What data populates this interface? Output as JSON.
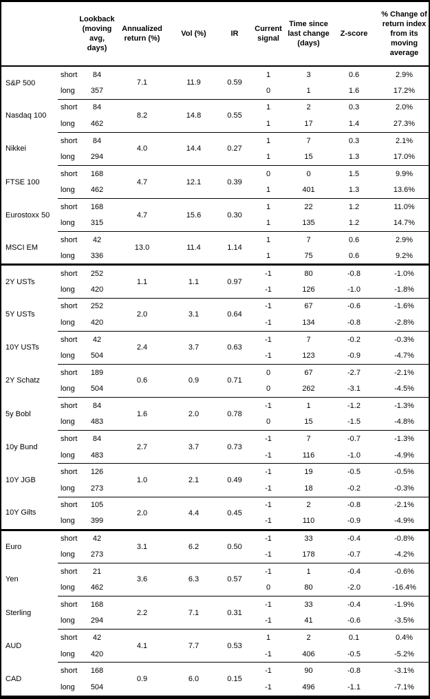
{
  "table": {
    "header_labels": [
      "",
      "",
      "Lookback (moving avg, days)",
      "Annualized return (%)",
      "Vol (%)",
      "IR",
      "Current signal",
      "Time since last change (days)",
      "Z-score",
      "% Change of return index from its moving average"
    ],
    "sections": [
      {
        "assets": [
          {
            "name": "S&P 500",
            "annualized_return": "7.1",
            "vol": "11.9",
            "ir": "0.59",
            "legs": [
              {
                "label": "short",
                "lookback": "84",
                "signal": "1",
                "time_since": "3",
                "z_score": "0.6",
                "pct_change": "2.9%"
              },
              {
                "label": "long",
                "lookback": "357",
                "signal": "0",
                "time_since": "1",
                "z_score": "1.6",
                "pct_change": "17.2%"
              }
            ]
          },
          {
            "name": "Nasdaq 100",
            "annualized_return": "8.2",
            "vol": "14.8",
            "ir": "0.55",
            "legs": [
              {
                "label": "short",
                "lookback": "84",
                "signal": "1",
                "time_since": "2",
                "z_score": "0.3",
                "pct_change": "2.0%"
              },
              {
                "label": "long",
                "lookback": "462",
                "signal": "1",
                "time_since": "17",
                "z_score": "1.4",
                "pct_change": "27.3%"
              }
            ]
          },
          {
            "name": "Nikkei",
            "annualized_return": "4.0",
            "vol": "14.4",
            "ir": "0.27",
            "legs": [
              {
                "label": "short",
                "lookback": "84",
                "signal": "1",
                "time_since": "7",
                "z_score": "0.3",
                "pct_change": "2.1%"
              },
              {
                "label": "long",
                "lookback": "294",
                "signal": "1",
                "time_since": "15",
                "z_score": "1.3",
                "pct_change": "17.0%"
              }
            ]
          },
          {
            "name": "FTSE 100",
            "annualized_return": "4.7",
            "vol": "12.1",
            "ir": "0.39",
            "legs": [
              {
                "label": "short",
                "lookback": "168",
                "signal": "0",
                "time_since": "0",
                "z_score": "1.5",
                "pct_change": "9.9%"
              },
              {
                "label": "long",
                "lookback": "462",
                "signal": "1",
                "time_since": "401",
                "z_score": "1.3",
                "pct_change": "13.6%"
              }
            ]
          },
          {
            "name": "Eurostoxx 50",
            "annualized_return": "4.7",
            "vol": "15.6",
            "ir": "0.30",
            "legs": [
              {
                "label": "short",
                "lookback": "168",
                "signal": "1",
                "time_since": "22",
                "z_score": "1.2",
                "pct_change": "11.0%"
              },
              {
                "label": "long",
                "lookback": "315",
                "signal": "1",
                "time_since": "135",
                "z_score": "1.2",
                "pct_change": "14.7%"
              }
            ]
          },
          {
            "name": "MSCI EM",
            "annualized_return": "13.0",
            "vol": "11.4",
            "ir": "1.14",
            "legs": [
              {
                "label": "short",
                "lookback": "42",
                "signal": "1",
                "time_since": "7",
                "z_score": "0.6",
                "pct_change": "2.9%"
              },
              {
                "label": "long",
                "lookback": "336",
                "signal": "1",
                "time_since": "75",
                "z_score": "0.6",
                "pct_change": "9.2%"
              }
            ]
          }
        ]
      },
      {
        "assets": [
          {
            "name": "2Y USTs",
            "annualized_return": "1.1",
            "vol": "1.1",
            "ir": "0.97",
            "legs": [
              {
                "label": "short",
                "lookback": "252",
                "signal": "-1",
                "time_since": "80",
                "z_score": "-0.8",
                "pct_change": "-1.0%"
              },
              {
                "label": "long",
                "lookback": "420",
                "signal": "-1",
                "time_since": "126",
                "z_score": "-1.0",
                "pct_change": "-1.8%"
              }
            ]
          },
          {
            "name": "5Y USTs",
            "annualized_return": "2.0",
            "vol": "3.1",
            "ir": "0.64",
            "legs": [
              {
                "label": "short",
                "lookback": "252",
                "signal": "-1",
                "time_since": "67",
                "z_score": "-0.6",
                "pct_change": "-1.6%"
              },
              {
                "label": "long",
                "lookback": "420",
                "signal": "-1",
                "time_since": "134",
                "z_score": "-0.8",
                "pct_change": "-2.8%"
              }
            ]
          },
          {
            "name": "10Y USTs",
            "annualized_return": "2.4",
            "vol": "3.7",
            "ir": "0.63",
            "legs": [
              {
                "label": "short",
                "lookback": "42",
                "signal": "-1",
                "time_since": "7",
                "z_score": "-0.2",
                "pct_change": "-0.3%"
              },
              {
                "label": "long",
                "lookback": "504",
                "signal": "-1",
                "time_since": "123",
                "z_score": "-0.9",
                "pct_change": "-4.7%"
              }
            ]
          },
          {
            "name": "2Y Schatz",
            "annualized_return": "0.6",
            "vol": "0.9",
            "ir": "0.71",
            "legs": [
              {
                "label": "short",
                "lookback": "189",
                "signal": "0",
                "time_since": "67",
                "z_score": "-2.7",
                "pct_change": "-2.1%"
              },
              {
                "label": "long",
                "lookback": "504",
                "signal": "0",
                "time_since": "262",
                "z_score": "-3.1",
                "pct_change": "-4.5%"
              }
            ]
          },
          {
            "name": "5y Bobl",
            "annualized_return": "1.6",
            "vol": "2.0",
            "ir": "0.78",
            "legs": [
              {
                "label": "short",
                "lookback": "84",
                "signal": "-1",
                "time_since": "1",
                "z_score": "-1.2",
                "pct_change": "-1.3%"
              },
              {
                "label": "long",
                "lookback": "483",
                "signal": "0",
                "time_since": "15",
                "z_score": "-1.5",
                "pct_change": "-4.8%"
              }
            ]
          },
          {
            "name": "10y Bund",
            "annualized_return": "2.7",
            "vol": "3.7",
            "ir": "0.73",
            "legs": [
              {
                "label": "short",
                "lookback": "84",
                "signal": "-1",
                "time_since": "7",
                "z_score": "-0.7",
                "pct_change": "-1.3%"
              },
              {
                "label": "long",
                "lookback": "483",
                "signal": "-1",
                "time_since": "116",
                "z_score": "-1.0",
                "pct_change": "-4.9%"
              }
            ]
          },
          {
            "name": "10Y JGB",
            "annualized_return": "1.0",
            "vol": "2.1",
            "ir": "0.49",
            "legs": [
              {
                "label": "short",
                "lookback": "126",
                "signal": "-1",
                "time_since": "19",
                "z_score": "-0.5",
                "pct_change": "-0.5%"
              },
              {
                "label": "long",
                "lookback": "273",
                "signal": "-1",
                "time_since": "18",
                "z_score": "-0.2",
                "pct_change": "-0.3%"
              }
            ]
          },
          {
            "name": "10Y Gilts",
            "annualized_return": "2.0",
            "vol": "4.4",
            "ir": "0.45",
            "legs": [
              {
                "label": "short",
                "lookback": "105",
                "signal": "-1",
                "time_since": "2",
                "z_score": "-0.8",
                "pct_change": "-2.1%"
              },
              {
                "label": "long",
                "lookback": "399",
                "signal": "-1",
                "time_since": "110",
                "z_score": "-0.9",
                "pct_change": "-4.9%"
              }
            ]
          }
        ]
      },
      {
        "assets": [
          {
            "name": "Euro",
            "annualized_return": "3.1",
            "vol": "6.2",
            "ir": "0.50",
            "legs": [
              {
                "label": "short",
                "lookback": "42",
                "signal": "-1",
                "time_since": "33",
                "z_score": "-0.4",
                "pct_change": "-0.8%"
              },
              {
                "label": "long",
                "lookback": "273",
                "signal": "-1",
                "time_since": "178",
                "z_score": "-0.7",
                "pct_change": "-4.2%"
              }
            ]
          },
          {
            "name": "Yen",
            "annualized_return": "3.6",
            "vol": "6.3",
            "ir": "0.57",
            "legs": [
              {
                "label": "short",
                "lookback": "21",
                "signal": "-1",
                "time_since": "1",
                "z_score": "-0.4",
                "pct_change": "-0.6%"
              },
              {
                "label": "long",
                "lookback": "462",
                "signal": "0",
                "time_since": "80",
                "z_score": "-2.0",
                "pct_change": "-16.4%"
              }
            ]
          },
          {
            "name": "Sterling",
            "annualized_return": "2.2",
            "vol": "7.1",
            "ir": "0.31",
            "legs": [
              {
                "label": "short",
                "lookback": "168",
                "signal": "-1",
                "time_since": "33",
                "z_score": "-0.4",
                "pct_change": "-1.9%"
              },
              {
                "label": "long",
                "lookback": "294",
                "signal": "-1",
                "time_since": "41",
                "z_score": "-0.6",
                "pct_change": "-3.5%"
              }
            ]
          },
          {
            "name": "AUD",
            "annualized_return": "4.1",
            "vol": "7.7",
            "ir": "0.53",
            "legs": [
              {
                "label": "short",
                "lookback": "42",
                "signal": "1",
                "time_since": "2",
                "z_score": "0.1",
                "pct_change": "0.4%"
              },
              {
                "label": "long",
                "lookback": "420",
                "signal": "-1",
                "time_since": "406",
                "z_score": "-0.5",
                "pct_change": "-5.2%"
              }
            ]
          },
          {
            "name": "CAD",
            "annualized_return": "0.9",
            "vol": "6.0",
            "ir": "0.15",
            "legs": [
              {
                "label": "short",
                "lookback": "168",
                "signal": "-1",
                "time_since": "90",
                "z_score": "-0.8",
                "pct_change": "-3.1%"
              },
              {
                "label": "long",
                "lookback": "504",
                "signal": "-1",
                "time_since": "496",
                "z_score": "-1.1",
                "pct_change": "-7.1%"
              }
            ]
          }
        ]
      }
    ]
  }
}
